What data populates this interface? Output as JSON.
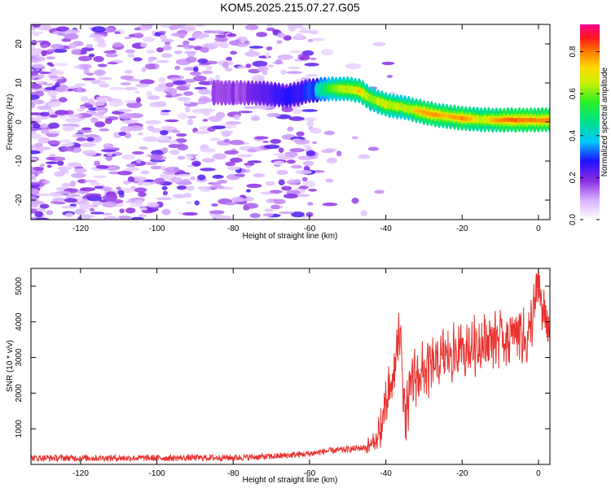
{
  "title": "KOM5.2025.215.07.27.G05",
  "chart_data": [
    {
      "type": "heatmap",
      "xlabel": "Height of straight line (km)",
      "ylabel": "Frequency (Hz)",
      "xlim": [
        -133,
        3
      ],
      "ylim": [
        -25,
        25
      ],
      "xticks": [
        -120,
        -100,
        -80,
        -60,
        -40,
        -20,
        0
      ],
      "yticks": [
        -20,
        -10,
        0,
        10,
        20
      ],
      "colorbar": {
        "label": "Normalized spectral amplitude",
        "range": [
          0,
          0.93
        ],
        "ticks": [
          0.0,
          0.2,
          0.4,
          0.6,
          0.8
        ],
        "colormap": "white-violet-blue-cyan-green-yellow-orange-red-magenta"
      },
      "ridge": {
        "points": [
          {
            "x": -85,
            "y": 7.5
          },
          {
            "x": -78,
            "y": 7.5
          },
          {
            "x": -72,
            "y": 7.5
          },
          {
            "x": -66,
            "y": 6.5
          },
          {
            "x": -60,
            "y": 8.0
          },
          {
            "x": -55,
            "y": 8.5
          },
          {
            "x": -50,
            "y": 8.5
          },
          {
            "x": -47,
            "y": 8.0
          },
          {
            "x": -44,
            "y": 6.0
          },
          {
            "x": -40,
            "y": 4.5
          },
          {
            "x": -36,
            "y": 3.8
          },
          {
            "x": -32,
            "y": 3.0
          },
          {
            "x": -28,
            "y": 2.0
          },
          {
            "x": -24,
            "y": 1.5
          },
          {
            "x": -20,
            "y": 1.0
          },
          {
            "x": -15,
            "y": 0.6
          },
          {
            "x": -10,
            "y": 0.5
          },
          {
            "x": -5,
            "y": 0.5
          },
          {
            "x": 0,
            "y": 0.5
          },
          {
            "x": 3,
            "y": 0.5
          }
        ],
        "amplitude": [
          0.2,
          0.2,
          0.25,
          0.3,
          0.35,
          0.6,
          0.75,
          0.8,
          0.7,
          0.75,
          0.7,
          0.8,
          0.85,
          0.8,
          0.85,
          0.75,
          0.85,
          0.9,
          0.85,
          0.9
        ]
      }
    },
    {
      "type": "line",
      "xlabel": "Height of straight line (km)",
      "ylabel": "SNR (10 * v/v)",
      "xlim": [
        -133,
        3
      ],
      "ylim": [
        0,
        5500
      ],
      "xticks": [
        -120,
        -100,
        -80,
        -60,
        -40,
        -20,
        0
      ],
      "yticks": [
        1000,
        2000,
        3000,
        4000,
        5000
      ],
      "color": "#e8322e",
      "envelope": {
        "x": [
          -133,
          -120,
          -100,
          -80,
          -70,
          -60,
          -55,
          -50,
          -45,
          -42,
          -40,
          -38,
          -37,
          -36,
          -35,
          -33,
          -30,
          -27,
          -25,
          -22,
          -20,
          -18,
          -15,
          -12,
          -10,
          -8,
          -5,
          -3,
          -1,
          0,
          1,
          2,
          3
        ],
        "y": [
          180,
          180,
          180,
          190,
          220,
          300,
          380,
          420,
          480,
          700,
          1600,
          2400,
          3400,
          3600,
          1200,
          2400,
          2600,
          2800,
          3000,
          3100,
          3200,
          3300,
          3400,
          3500,
          3600,
          3500,
          3800,
          3400,
          4400,
          5100,
          4300,
          4000,
          3800
        ]
      }
    }
  ]
}
